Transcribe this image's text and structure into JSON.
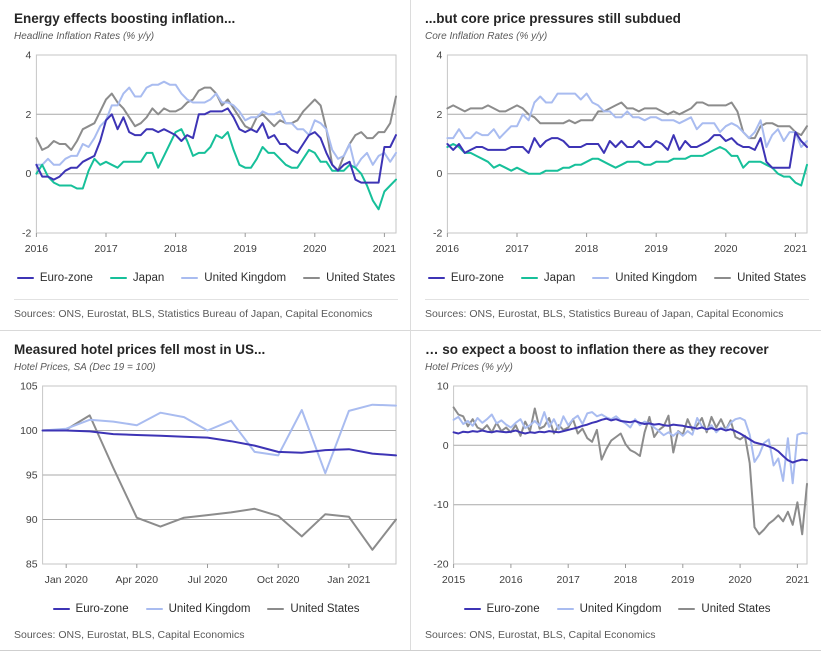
{
  "colors": {
    "eurozone": "#3d34b5",
    "japan": "#17c09a",
    "united_kingdom": "#a9bcf0",
    "united_states": "#8c8c8c",
    "grid": "#a9a9a9",
    "plot_border": "#c6c6c6"
  },
  "chart_data": [
    {
      "id": "headline-inflation",
      "type": "line",
      "title": "Energy effects boosting inflation...",
      "subtitle": "Headline Inflation Rates (% y/y)",
      "sources": "Sources: ONS, Eurostat, BLS, Statistics Bureau of Japan, Capital Economics",
      "x_start": "2016-01",
      "x_unit": "month",
      "ylim": [
        -2,
        4
      ],
      "y_ticks": [
        -2,
        0,
        2,
        4
      ],
      "grid_y": [
        0,
        2
      ],
      "grid": true,
      "legend_position": "bottom",
      "x_ticks": [
        {
          "index": 0,
          "label": "2016"
        },
        {
          "index": 12,
          "label": "2017"
        },
        {
          "index": 24,
          "label": "2018"
        },
        {
          "index": 36,
          "label": "2019"
        },
        {
          "index": 48,
          "label": "2020"
        },
        {
          "index": 60,
          "label": "2021"
        }
      ],
      "series": [
        {
          "name": "Euro-zone",
          "color": "#3d34b5",
          "values": [
            0.3,
            -0.1,
            -0.1,
            -0.2,
            -0.1,
            0.1,
            0.2,
            0.2,
            0.4,
            0.5,
            0.6,
            1.1,
            1.8,
            2.0,
            1.5,
            1.9,
            1.4,
            1.3,
            1.3,
            1.5,
            1.5,
            1.4,
            1.5,
            1.4,
            1.3,
            1.1,
            1.3,
            1.2,
            2.0,
            2.0,
            2.1,
            2.1,
            2.1,
            2.2,
            1.9,
            1.5,
            1.4,
            1.5,
            1.4,
            1.7,
            1.2,
            1.3,
            1.0,
            1.0,
            0.8,
            0.7,
            1.0,
            1.3,
            1.4,
            1.2,
            0.7,
            0.3,
            0.1,
            0.3,
            0.4,
            -0.2,
            -0.3,
            -0.3,
            -0.3,
            -0.3,
            0.9,
            0.9,
            1.3
          ]
        },
        {
          "name": "Japan",
          "color": "#17c09a",
          "values": [
            0.0,
            0.3,
            -0.1,
            -0.3,
            -0.4,
            -0.4,
            -0.4,
            -0.5,
            -0.5,
            0.1,
            0.5,
            0.3,
            0.4,
            0.3,
            0.2,
            0.4,
            0.4,
            0.4,
            0.4,
            0.7,
            0.7,
            0.2,
            0.6,
            1.0,
            1.4,
            1.5,
            1.1,
            0.6,
            0.7,
            0.7,
            0.9,
            1.3,
            1.2,
            1.4,
            0.8,
            0.3,
            0.2,
            0.2,
            0.5,
            0.9,
            0.7,
            0.7,
            0.5,
            0.3,
            0.2,
            0.2,
            0.5,
            0.8,
            0.7,
            0.4,
            0.4,
            0.1,
            0.1,
            0.1,
            0.3,
            0.2,
            0.0,
            -0.4,
            -0.9,
            -1.2,
            -0.6,
            -0.4,
            -0.2
          ]
        },
        {
          "name": "United Kingdom",
          "color": "#a9bcf0",
          "values": [
            0.3,
            0.3,
            0.5,
            0.3,
            0.3,
            0.5,
            0.6,
            0.6,
            1.0,
            0.9,
            1.2,
            1.6,
            1.8,
            2.3,
            2.3,
            2.7,
            2.9,
            2.6,
            2.6,
            2.9,
            3.0,
            3.0,
            3.1,
            3.0,
            3.0,
            2.7,
            2.5,
            2.4,
            2.4,
            2.4,
            2.5,
            2.7,
            2.4,
            2.4,
            2.3,
            2.1,
            1.8,
            1.9,
            1.9,
            2.1,
            2.0,
            2.0,
            2.1,
            1.7,
            1.7,
            1.5,
            1.5,
            1.3,
            1.8,
            1.7,
            1.5,
            0.8,
            0.5,
            0.6,
            1.0,
            0.2,
            0.5,
            0.7,
            0.3,
            0.6,
            0.7,
            0.4,
            0.7
          ]
        },
        {
          "name": "United States",
          "color": "#8c8c8c",
          "values": [
            1.2,
            0.8,
            0.9,
            1.1,
            1.0,
            1.0,
            0.8,
            1.1,
            1.5,
            1.6,
            1.7,
            2.1,
            2.5,
            2.7,
            2.4,
            2.2,
            1.9,
            1.6,
            1.7,
            1.9,
            2.2,
            2.0,
            2.2,
            2.1,
            2.1,
            2.2,
            2.4,
            2.5,
            2.8,
            2.9,
            2.9,
            2.7,
            2.3,
            2.5,
            2.2,
            1.9,
            1.6,
            1.5,
            1.9,
            2.0,
            1.8,
            1.6,
            1.8,
            1.7,
            1.7,
            1.8,
            2.1,
            2.3,
            2.5,
            2.3,
            1.5,
            0.3,
            0.1,
            0.6,
            1.0,
            1.3,
            1.4,
            1.2,
            1.2,
            1.4,
            1.4,
            1.7,
            2.6
          ]
        }
      ]
    },
    {
      "id": "core-inflation",
      "type": "line",
      "title": "...but core price pressures still subdued",
      "subtitle": "Core Inflation Rates (% y/y)",
      "sources": "Sources: ONS, Eurostat, BLS, Statistics Bureau of Japan, Capital Economics",
      "x_start": "2016-01",
      "x_unit": "month",
      "ylim": [
        -2,
        4
      ],
      "y_ticks": [
        -2,
        0,
        2,
        4
      ],
      "grid_y": [
        0,
        2
      ],
      "grid": true,
      "legend_position": "bottom",
      "x_ticks": [
        {
          "index": 0,
          "label": "2016"
        },
        {
          "index": 12,
          "label": "2017"
        },
        {
          "index": 24,
          "label": "2018"
        },
        {
          "index": 36,
          "label": "2019"
        },
        {
          "index": 48,
          "label": "2020"
        },
        {
          "index": 60,
          "label": "2021"
        }
      ],
      "series": [
        {
          "name": "Euro-zone",
          "color": "#3d34b5",
          "values": [
            1.0,
            0.8,
            1.0,
            0.7,
            0.8,
            0.9,
            0.9,
            0.8,
            0.8,
            0.8,
            0.8,
            0.9,
            0.9,
            0.9,
            0.7,
            1.2,
            0.9,
            1.1,
            1.2,
            1.2,
            1.1,
            0.9,
            0.9,
            0.9,
            1.0,
            1.0,
            1.0,
            0.7,
            1.1,
            0.9,
            1.1,
            0.9,
            0.9,
            1.1,
            0.9,
            0.9,
            1.1,
            1.0,
            0.8,
            1.3,
            0.8,
            1.1,
            0.9,
            0.9,
            1.0,
            1.1,
            1.3,
            1.3,
            1.1,
            1.2,
            1.0,
            0.9,
            0.9,
            0.8,
            1.2,
            0.4,
            0.2,
            0.2,
            0.2,
            0.2,
            1.4,
            1.1,
            0.9
          ]
        },
        {
          "name": "Japan",
          "color": "#17c09a",
          "values": [
            0.9,
            1.0,
            0.9,
            0.7,
            0.7,
            0.6,
            0.5,
            0.4,
            0.2,
            0.3,
            0.2,
            0.1,
            0.2,
            0.1,
            0.0,
            0.0,
            0.0,
            0.1,
            0.1,
            0.1,
            0.2,
            0.2,
            0.3,
            0.3,
            0.4,
            0.5,
            0.5,
            0.4,
            0.3,
            0.2,
            0.3,
            0.4,
            0.4,
            0.4,
            0.3,
            0.3,
            0.4,
            0.4,
            0.4,
            0.5,
            0.5,
            0.5,
            0.6,
            0.6,
            0.6,
            0.7,
            0.8,
            0.9,
            0.8,
            0.6,
            0.6,
            0.2,
            0.4,
            0.4,
            0.4,
            0.3,
            0.2,
            0.0,
            -0.1,
            -0.1,
            -0.3,
            -0.4,
            0.3
          ]
        },
        {
          "name": "United Kingdom",
          "color": "#a9bcf0",
          "values": [
            1.2,
            1.2,
            1.5,
            1.2,
            1.2,
            1.4,
            1.3,
            1.3,
            1.5,
            1.2,
            1.4,
            1.6,
            1.6,
            2.0,
            1.8,
            2.4,
            2.6,
            2.4,
            2.4,
            2.7,
            2.7,
            2.7,
            2.7,
            2.5,
            2.7,
            2.4,
            2.3,
            2.1,
            2.1,
            1.9,
            1.9,
            2.1,
            1.9,
            1.9,
            1.8,
            1.9,
            1.9,
            1.8,
            1.8,
            1.8,
            1.7,
            1.8,
            1.9,
            1.5,
            1.7,
            1.7,
            1.7,
            1.4,
            1.6,
            1.7,
            1.6,
            1.4,
            1.2,
            1.4,
            1.8,
            0.9,
            1.3,
            1.5,
            1.1,
            1.4,
            1.4,
            0.9,
            1.1
          ]
        },
        {
          "name": "United States",
          "color": "#8c8c8c",
          "values": [
            2.2,
            2.3,
            2.2,
            2.1,
            2.2,
            2.2,
            2.2,
            2.3,
            2.2,
            2.1,
            2.1,
            2.2,
            2.3,
            2.2,
            2.0,
            1.9,
            1.7,
            1.7,
            1.7,
            1.7,
            1.7,
            1.8,
            1.7,
            1.8,
            1.8,
            1.8,
            2.1,
            2.1,
            2.2,
            2.3,
            2.4,
            2.2,
            2.2,
            2.1,
            2.2,
            2.2,
            2.2,
            2.1,
            2.0,
            2.1,
            2.0,
            2.1,
            2.2,
            2.4,
            2.4,
            2.3,
            2.3,
            2.3,
            2.3,
            2.4,
            2.1,
            1.4,
            1.2,
            1.2,
            1.6,
            1.7,
            1.7,
            1.6,
            1.6,
            1.6,
            1.4,
            1.3,
            1.6
          ]
        }
      ]
    },
    {
      "id": "hotel-prices-index",
      "type": "line",
      "title": "Measured hotel prices fell most in US...",
      "subtitle": "Hotel Prices, SA (Dec 19 = 100)",
      "sources": "Sources: ONS, Eurostat, BLS, Capital Economics",
      "x_start": "2019-12",
      "x_unit": "month",
      "ylim": [
        85,
        105
      ],
      "y_ticks": [
        85,
        90,
        95,
        100,
        105
      ],
      "grid_y": [
        90,
        95,
        100
      ],
      "grid": true,
      "legend_position": "bottom",
      "x_ticks": [
        {
          "index": 1,
          "label": "Jan 2020"
        },
        {
          "index": 4,
          "label": "Apr 2020"
        },
        {
          "index": 7,
          "label": "Jul 2020"
        },
        {
          "index": 10,
          "label": "Oct 2020"
        },
        {
          "index": 13,
          "label": "Jan 2021"
        }
      ],
      "series": [
        {
          "name": "Euro-zone",
          "color": "#3d34b5",
          "values": [
            100.0,
            100.0,
            99.9,
            99.6,
            99.5,
            99.4,
            99.3,
            99.2,
            98.8,
            98.3,
            97.6,
            97.5,
            97.8,
            97.9,
            97.4,
            97.2
          ]
        },
        {
          "name": "United Kingdom",
          "color": "#a9bcf0",
          "values": [
            100.0,
            100.2,
            101.2,
            101.0,
            100.6,
            102.0,
            101.5,
            100.0,
            101.1,
            97.6,
            97.2,
            102.3,
            95.2,
            102.2,
            102.9,
            102.8
          ]
        },
        {
          "name": "United States",
          "color": "#8c8c8c",
          "values": [
            100.0,
            100.1,
            101.7,
            95.8,
            90.2,
            89.2,
            90.2,
            90.5,
            90.8,
            91.2,
            90.4,
            88.1,
            90.6,
            90.3,
            86.6,
            90.0
          ]
        }
      ]
    },
    {
      "id": "hotel-prices-yoy",
      "type": "line",
      "title": "… so expect a boost to inflation there as they recover",
      "subtitle": "Hotel Prices (% y/y)",
      "sources": "Sources: ONS, Eurostat, BLS, Capital Economics",
      "x_start": "2015-01",
      "x_unit": "month",
      "ylim": [
        -20,
        10
      ],
      "y_ticks": [
        -20,
        -10,
        0,
        10
      ],
      "grid_y": [
        -10,
        0
      ],
      "grid": true,
      "legend_position": "bottom",
      "x_ticks": [
        {
          "index": 0,
          "label": "2015"
        },
        {
          "index": 12,
          "label": "2016"
        },
        {
          "index": 24,
          "label": "2017"
        },
        {
          "index": 36,
          "label": "2018"
        },
        {
          "index": 48,
          "label": "2019"
        },
        {
          "index": 60,
          "label": "2020"
        },
        {
          "index": 72,
          "label": "2021"
        }
      ],
      "series": [
        {
          "name": "Euro-zone",
          "color": "#3d34b5",
          "values": [
            2.2,
            2.0,
            2.3,
            2.2,
            2.4,
            2.3,
            2.5,
            2.3,
            2.2,
            2.4,
            2.3,
            2.2,
            2.3,
            2.5,
            2.2,
            2.0,
            2.2,
            2.1,
            2.3,
            2.2,
            2.4,
            2.3,
            2.2,
            2.4,
            2.6,
            2.8,
            3.0,
            3.3,
            3.5,
            3.8,
            4.0,
            4.3,
            4.5,
            4.2,
            4.4,
            4.1,
            4.0,
            3.9,
            4.1,
            3.8,
            3.6,
            3.7,
            3.5,
            3.6,
            3.4,
            3.3,
            3.5,
            3.4,
            3.3,
            3.1,
            3.0,
            2.8,
            3.0,
            2.7,
            2.9,
            2.6,
            2.8,
            2.5,
            2.7,
            2.4,
            2.0,
            1.5,
            1.0,
            0.5,
            0.3,
            0.1,
            -0.2,
            -0.5,
            -1.0,
            -1.8,
            -2.5,
            -2.9,
            -2.6,
            -2.4,
            -2.5
          ]
        },
        {
          "name": "United Kingdom",
          "color": "#a9bcf0",
          "values": [
            4.3,
            4.8,
            3.6,
            4.1,
            3.3,
            4.6,
            3.8,
            4.4,
            5.2,
            3.7,
            4.2,
            3.5,
            3.0,
            3.8,
            4.4,
            2.9,
            3.4,
            4.1,
            3.3,
            5.6,
            3.1,
            4.4,
            2.7,
            4.9,
            3.4,
            4.4,
            5.0,
            3.6,
            5.4,
            5.6,
            4.9,
            5.2,
            4.7,
            4.4,
            4.9,
            4.2,
            3.7,
            3.0,
            4.4,
            3.4,
            4.0,
            3.7,
            3.0,
            2.4,
            1.7,
            2.2,
            1.6,
            2.3,
            1.6,
            2.4,
            1.8,
            4.6,
            3.2,
            2.6,
            3.4,
            2.2,
            3.0,
            2.6,
            3.8,
            4.4,
            4.6,
            4.2,
            1.8,
            -2.8,
            -1.6,
            0.4,
            1.0,
            -3.4,
            -2.2,
            -6.0,
            1.2,
            -6.4,
            1.8,
            2.1,
            2.0
          ]
        },
        {
          "name": "United States",
          "color": "#8c8c8c",
          "values": [
            6.4,
            5.2,
            4.9,
            3.2,
            4.4,
            3.0,
            2.6,
            3.4,
            2.2,
            3.8,
            2.4,
            3.0,
            2.2,
            3.4,
            1.6,
            4.0,
            2.4,
            6.2,
            2.8,
            3.2,
            4.6,
            2.0,
            3.4,
            2.6,
            3.0,
            4.4,
            2.0,
            2.8,
            1.2,
            0.6,
            2.6,
            -2.4,
            -0.6,
            0.8,
            1.4,
            2.0,
            0.2,
            -0.8,
            -1.2,
            -1.8,
            2.2,
            4.8,
            1.4,
            2.6,
            3.2,
            5.0,
            -1.2,
            2.4,
            1.8,
            4.4,
            2.6,
            3.4,
            4.6,
            2.2,
            4.8,
            3.0,
            4.4,
            2.6,
            4.2,
            1.4,
            1.0,
            1.6,
            -3.0,
            -13.8,
            -15.0,
            -14.2,
            -13.2,
            -12.6,
            -11.8,
            -12.8,
            -11.2,
            -13.4,
            -9.6,
            -15.0,
            -6.5
          ]
        }
      ]
    }
  ]
}
